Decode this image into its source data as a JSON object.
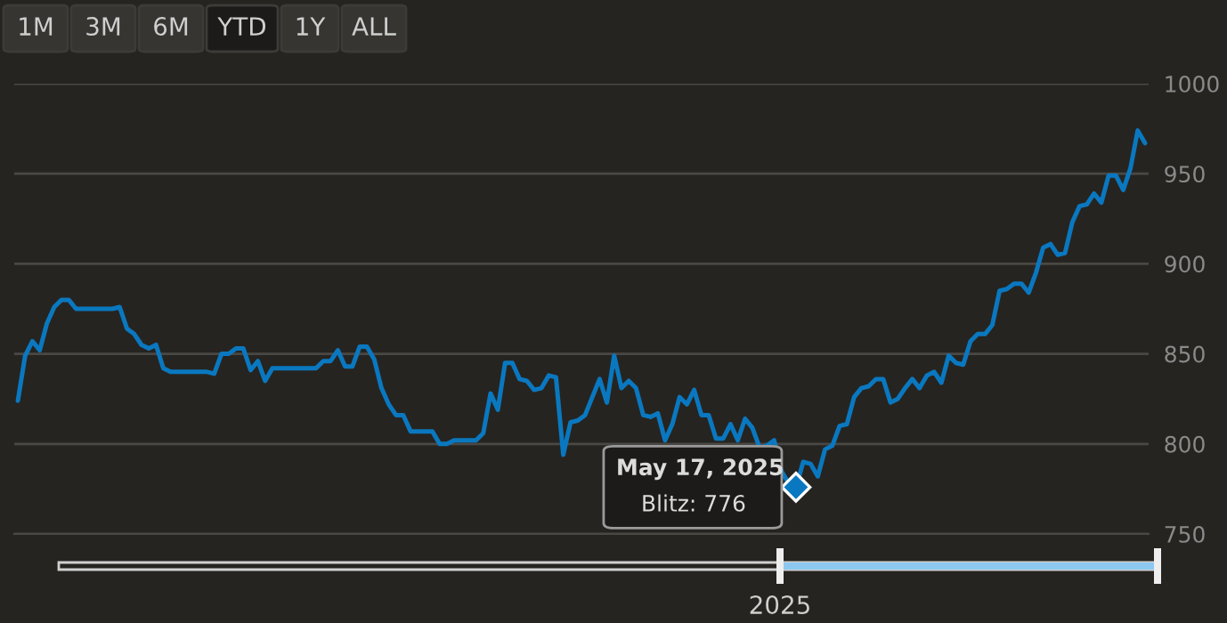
{
  "chart_data": {
    "type": "line",
    "categories": [
      null,
      null,
      null,
      null,
      null,
      null,
      null,
      null,
      null,
      null,
      null,
      null,
      null,
      null,
      null,
      null,
      null,
      null,
      null,
      null,
      null,
      null,
      null,
      null,
      null,
      null,
      null,
      null,
      null,
      null,
      null,
      null,
      null,
      null,
      null,
      null,
      null,
      null,
      null,
      null,
      null,
      null,
      null,
      null,
      null,
      null,
      null,
      null,
      null,
      null,
      null,
      null,
      null,
      null,
      null,
      null,
      null,
      null,
      null,
      null,
      null,
      null,
      null,
      null,
      null,
      null,
      null,
      null,
      null,
      null,
      null,
      null,
      null,
      null,
      null,
      null,
      null,
      null,
      null,
      null,
      null,
      null,
      null,
      null,
      null,
      null,
      null,
      null,
      null,
      null,
      null,
      null,
      null,
      null,
      null,
      null,
      null,
      null,
      null,
      null,
      null,
      null,
      null,
      null,
      null,
      null,
      null,
      null,
      null,
      null,
      null,
      null,
      null,
      null,
      null,
      null,
      null,
      null,
      null,
      null,
      null,
      null,
      null,
      null,
      null,
      null,
      null,
      null,
      null,
      null,
      null,
      null,
      null,
      null,
      null,
      null,
      null,
      null,
      null,
      null,
      null,
      null,
      null,
      null,
      null,
      null,
      null,
      null,
      null,
      null,
      null,
      null,
      null,
      null,
      null,
      null
    ],
    "series": [
      {
        "color": "#0a78c0",
        "values": [
          824,
          849,
          857,
          852,
          867,
          876,
          880,
          880,
          875,
          875,
          875,
          875,
          875,
          875,
          876,
          864,
          861,
          855,
          853,
          855,
          842,
          840,
          840,
          840,
          840,
          840,
          840,
          839,
          850,
          850,
          853,
          853,
          841,
          846,
          835,
          842,
          842,
          842,
          842,
          842,
          842,
          842,
          846,
          846,
          852,
          843,
          843,
          854,
          854,
          847,
          831,
          822,
          816,
          816,
          807,
          807,
          807,
          807,
          800,
          800,
          802,
          802,
          802,
          802,
          806,
          828,
          819,
          845,
          845,
          836,
          835,
          830,
          831,
          838,
          837,
          794,
          812,
          813,
          816,
          826,
          836,
          823,
          849,
          831,
          835,
          831,
          816,
          815,
          817,
          802,
          811,
          826,
          822,
          830,
          816,
          816,
          803,
          803,
          811,
          802,
          814,
          809,
          798,
          799,
          802,
          785,
          778,
          776,
          790,
          789,
          782,
          797,
          799,
          810,
          811,
          826,
          831,
          832,
          836,
          836,
          823,
          825,
          831,
          836,
          831,
          838,
          840,
          834,
          849,
          845,
          844,
          857,
          861,
          861,
          866,
          885,
          886,
          889,
          889,
          884,
          895,
          909,
          911,
          905,
          906,
          923,
          932,
          933,
          939,
          934,
          949,
          949,
          941,
          953,
          974,
          967
        ]
      }
    ],
    "ylim": [
      750,
      1000
    ],
    "yticks": [
      750,
      800,
      850,
      900,
      950,
      1000
    ],
    "grid": "y",
    "legend": false,
    "marker": "none",
    "line_style": "solid",
    "annotations": [
      "1M",
      "3M",
      "6M",
      "YTD",
      "1Y",
      "ALL",
      "May 17, 2025",
      "Blitz: 776",
      "2025"
    ]
  }
}
